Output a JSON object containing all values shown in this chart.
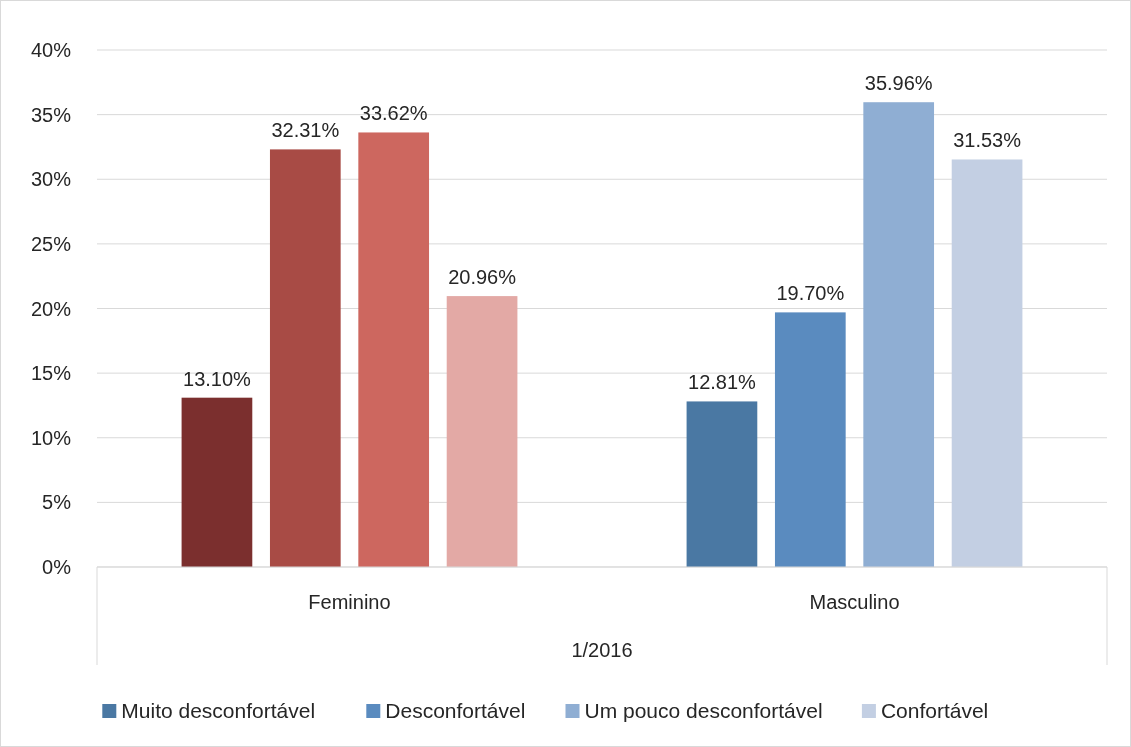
{
  "chart_data": {
    "type": "bar",
    "categories": [
      "Feminino",
      "Masculino"
    ],
    "xlabel": "1/2016",
    "series": [
      {
        "name": "Muito desconfortável",
        "color": "#4a78a3",
        "colors": [
          "#7b2f2e",
          "#4a78a3"
        ],
        "values": [
          13.1,
          12.81
        ],
        "value_labels": [
          "13.10%",
          "12.81%"
        ]
      },
      {
        "name": "Desconfortável",
        "color": "#5a8bbf",
        "colors": [
          "#a84b45",
          "#5a8bbf"
        ],
        "values": [
          32.31,
          19.7
        ],
        "value_labels": [
          "32.31%",
          "19.70%"
        ]
      },
      {
        "name": "Um pouco desconfortável",
        "color": "#8faed3",
        "colors": [
          "#cd675f",
          "#8faed3"
        ],
        "values": [
          33.62,
          35.96
        ],
        "value_labels": [
          "33.62%",
          "35.96%"
        ]
      },
      {
        "name": "Confortável",
        "color": "#c3cfe3",
        "colors": [
          "#e3a9a5",
          "#c3cfe3"
        ],
        "values": [
          20.96,
          31.53
        ],
        "value_labels": [
          "20.96%",
          "31.53%"
        ]
      }
    ],
    "ylim": [
      0,
      40
    ],
    "yticks": [
      {
        "value": 0,
        "label": "0%"
      },
      {
        "value": 5,
        "label": "5%"
      },
      {
        "value": 10,
        "label": "10%"
      },
      {
        "value": 15,
        "label": "15%"
      },
      {
        "value": 20,
        "label": "20%"
      },
      {
        "value": 25,
        "label": "25%"
      },
      {
        "value": 30,
        "label": "30%"
      },
      {
        "value": 35,
        "label": "35%"
      },
      {
        "value": 40,
        "label": "40%"
      }
    ],
    "grid": "y",
    "legend": "bottom"
  }
}
